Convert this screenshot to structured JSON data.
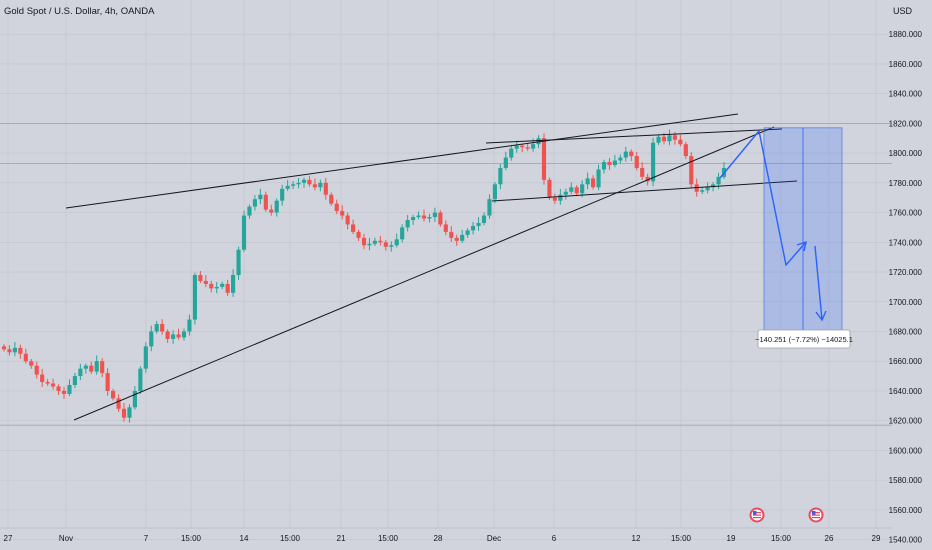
{
  "header": {
    "title": "Gold Spot / U.S. Dollar, 4h, OANDA",
    "currency": "USD"
  },
  "price_axis": {
    "ticks": [
      "1880.000",
      "1860.000",
      "1840.000",
      "1820.000",
      "1800.000",
      "1780.000",
      "1760.000",
      "1740.000",
      "1720.000",
      "1700.000",
      "1680.000",
      "1660.000",
      "1640.000",
      "1620.000",
      "1600.000",
      "1580.000",
      "1560.000",
      "1540.000"
    ]
  },
  "time_axis": {
    "ticks": [
      "27",
      "Nov",
      "7",
      "15:00",
      "14",
      "15:00",
      "21",
      "15:00",
      "28",
      "Dec",
      "6",
      "12",
      "15:00",
      "19",
      "15:00",
      "26",
      "29"
    ]
  },
  "measure_label": "−140.251 (−7.72%) −14025.1",
  "colors": {
    "up": "#26a69a",
    "down": "#ef5350",
    "background": "#d1d4dc",
    "projection": "#2962ff",
    "grid": "#bfc3cc"
  },
  "event_icons": [
    "us-flag-icon",
    "us-flag-icon"
  ],
  "chart_data": {
    "type": "candlestick",
    "title": "Gold Spot / U.S. Dollar, 4h, OANDA",
    "xlabel": "",
    "ylabel": "USD",
    "ylim": [
      1533,
      1903
    ],
    "x_range": [
      "Oct 27",
      "Dec 29"
    ],
    "interval": "4h",
    "grid": true,
    "closes": [
      1668,
      1666,
      1669,
      1665,
      1660,
      1657,
      1651,
      1646,
      1645,
      1643,
      1640,
      1638,
      1644,
      1650,
      1655,
      1657,
      1653,
      1660,
      1652,
      1640,
      1635,
      1628,
      1622,
      1629,
      1640,
      1655,
      1670,
      1680,
      1685,
      1680,
      1675,
      1678,
      1676,
      1680,
      1688,
      1718,
      1714,
      1712,
      1709,
      1710,
      1712,
      1706,
      1718,
      1735,
      1758,
      1764,
      1769,
      1772,
      1762,
      1760,
      1768,
      1776,
      1778,
      1779,
      1780,
      1782,
      1779,
      1777,
      1780,
      1772,
      1766,
      1761,
      1758,
      1752,
      1747,
      1743,
      1738,
      1739,
      1741,
      1740,
      1737,
      1738,
      1742,
      1750,
      1755,
      1757,
      1758,
      1756,
      1757,
      1760,
      1752,
      1747,
      1743,
      1741,
      1745,
      1748,
      1751,
      1753,
      1758,
      1769,
      1779,
      1790,
      1797,
      1803,
      1805,
      1804,
      1803,
      1806,
      1810,
      1782,
      1770,
      1768,
      1772,
      1774,
      1777,
      1773,
      1779,
      1783,
      1777,
      1789,
      1794,
      1792,
      1795,
      1797,
      1801,
      1798,
      1790,
      1784,
      1781,
      1807,
      1811,
      1808,
      1812,
      1809,
      1806,
      1798,
      1779,
      1774,
      1775,
      1777,
      1779,
      1784,
      1790
    ],
    "annotations": {
      "measure_label": "−140.251 (−7.72%) −14025.1",
      "target_zone": [
        1677,
        1817
      ],
      "horizontal_levels": [
        1820,
        1793,
        1617
      ]
    }
  }
}
